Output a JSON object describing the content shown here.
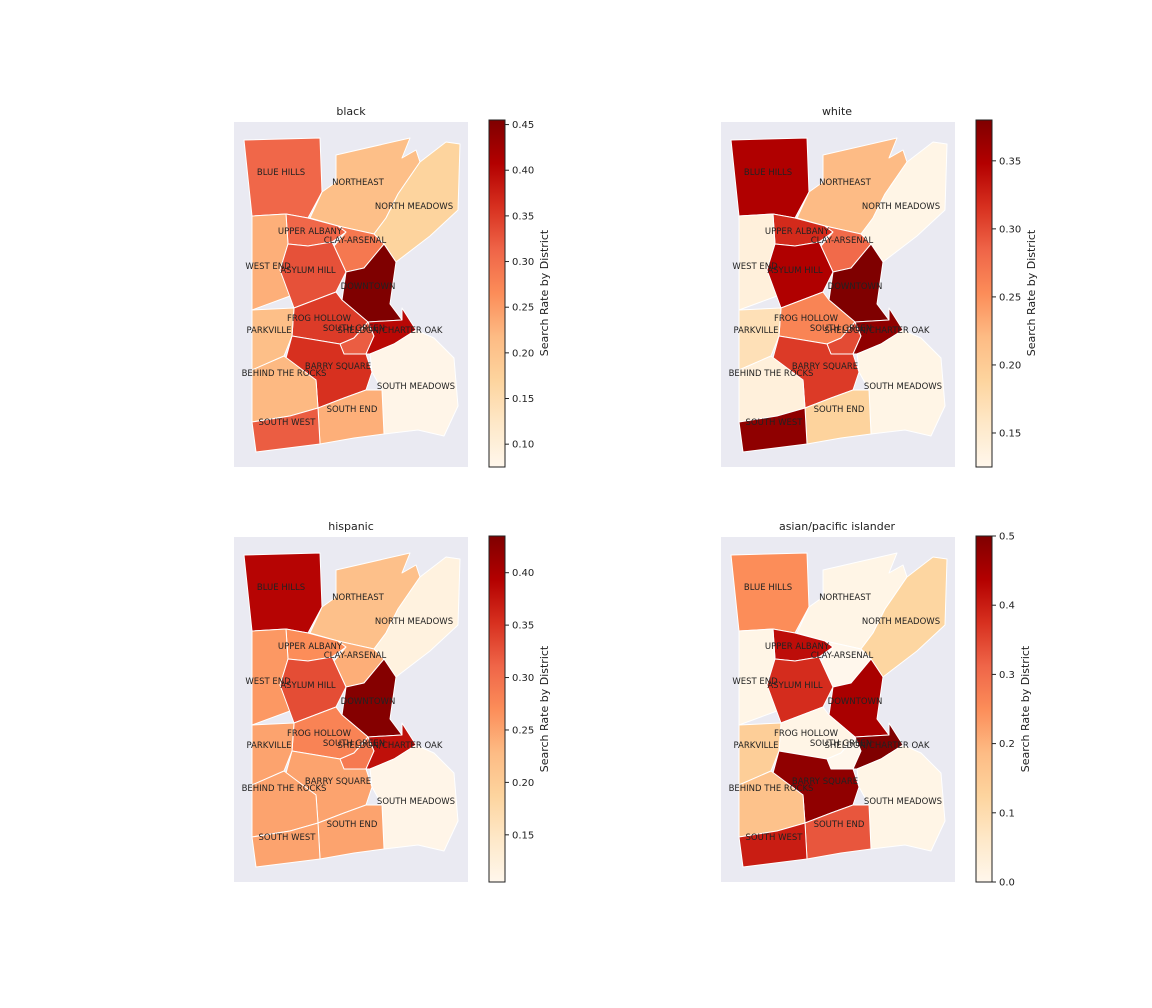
{
  "map": {
    "colormap": "OrRd",
    "background_color": "#eaeaf2",
    "colorbar_label": "Search Rate by District",
    "panels": [
      {
        "title": "black",
        "vmin": 0.075,
        "vmax": 0.455,
        "ticks": [
          0.1,
          0.15,
          0.2,
          0.25,
          0.3,
          0.35,
          0.4,
          0.45
        ],
        "tick_labels": [
          "0.10",
          "0.15",
          "0.20",
          "0.25",
          "0.30",
          "0.35",
          "0.40",
          "0.45"
        ],
        "values": {
          "BLUE HILLS": 0.31,
          "NORTHEAST": 0.21,
          "NORTH MEADOWS": 0.17,
          "UPPER ALBANY": 0.31,
          "CLAY-ARSENAL": 0.29,
          "WEST END": 0.23,
          "ASYLUM HILL": 0.33,
          "DOWNTOWN": 0.455,
          "FROG HOLLOW": 0.35,
          "PARKVILLE": 0.21,
          "SOUTH GREEN": 0.32,
          "SHELDON/CHARTER OAK": 0.4,
          "BARRY SQUARE": 0.36,
          "BEHIND THE ROCKS": 0.22,
          "SOUTH MEADOWS": 0.08,
          "SOUTH END": 0.23,
          "SOUTH WEST": 0.32
        }
      },
      {
        "title": "white",
        "vmin": 0.125,
        "vmax": 0.38,
        "ticks": [
          0.15,
          0.2,
          0.25,
          0.3,
          0.35
        ],
        "tick_labels": [
          "0.15",
          "0.20",
          "0.25",
          "0.30",
          "0.35"
        ],
        "values": {
          "BLUE HILLS": 0.35,
          "NORTHEAST": 0.22,
          "NORTH MEADOWS": 0.13,
          "UPPER ALBANY": 0.32,
          "CLAY-ARSENAL": 0.28,
          "WEST END": 0.14,
          "ASYLUM HILL": 0.35,
          "DOWNTOWN": 0.38,
          "FROG HOLLOW": 0.26,
          "PARKVILLE": 0.17,
          "SOUTH GREEN": 0.3,
          "SHELDON/CHARTER OAK": 0.37,
          "BARRY SQUARE": 0.31,
          "BEHIND THE ROCKS": 0.14,
          "SOUTH MEADOWS": 0.13,
          "SOUTH END": 0.19,
          "SOUTH WEST": 0.37
        }
      },
      {
        "title": "hispanic",
        "vmin": 0.105,
        "vmax": 0.435,
        "ticks": [
          0.15,
          0.2,
          0.25,
          0.3,
          0.35,
          0.4
        ],
        "tick_labels": [
          "0.15",
          "0.20",
          "0.25",
          "0.30",
          "0.35",
          "0.40"
        ],
        "values": {
          "BLUE HILLS": 0.39,
          "NORTHEAST": 0.22,
          "NORTH MEADOWS": 0.12,
          "UPPER ALBANY": 0.27,
          "CLAY-ARSENAL": 0.24,
          "WEST END": 0.26,
          "ASYLUM HILL": 0.33,
          "DOWNTOWN": 0.43,
          "FROG HOLLOW": 0.28,
          "PARKVILLE": 0.25,
          "SOUTH GREEN": 0.29,
          "SHELDON/CHARTER OAK": 0.38,
          "BARRY SQUARE": 0.25,
          "BEHIND THE ROCKS": 0.25,
          "SOUTH MEADOWS": 0.11,
          "SOUTH END": 0.25,
          "SOUTH WEST": 0.25
        }
      },
      {
        "title": "asian/pacific islander",
        "vmin": 0.0,
        "vmax": 0.5,
        "ticks": [
          0.0,
          0.1,
          0.2,
          0.3,
          0.4,
          0.5
        ],
        "tick_labels": [
          "0.0",
          "0.1",
          "0.2",
          "0.3",
          "0.4",
          "0.5"
        ],
        "values": {
          "BLUE HILLS": 0.25,
          "NORTHEAST": 0.01,
          "NORTH MEADOWS": 0.12,
          "UPPER ALBANY": 0.42,
          "CLAY-ARSENAL": 0.0,
          "WEST END": 0.01,
          "ASYLUM HILL": 0.38,
          "DOWNTOWN": 0.45,
          "FROG HOLLOW": 0.01,
          "PARKVILLE": 0.14,
          "SOUTH GREEN": 0.0,
          "SHELDON/CHARTER OAK": 0.5,
          "BARRY SQUARE": 0.48,
          "BEHIND THE ROCKS": 0.17,
          "SOUTH MEADOWS": 0.01,
          "SOUTH END": 0.33,
          "SOUTH WEST": 0.4
        }
      }
    ]
  }
}
